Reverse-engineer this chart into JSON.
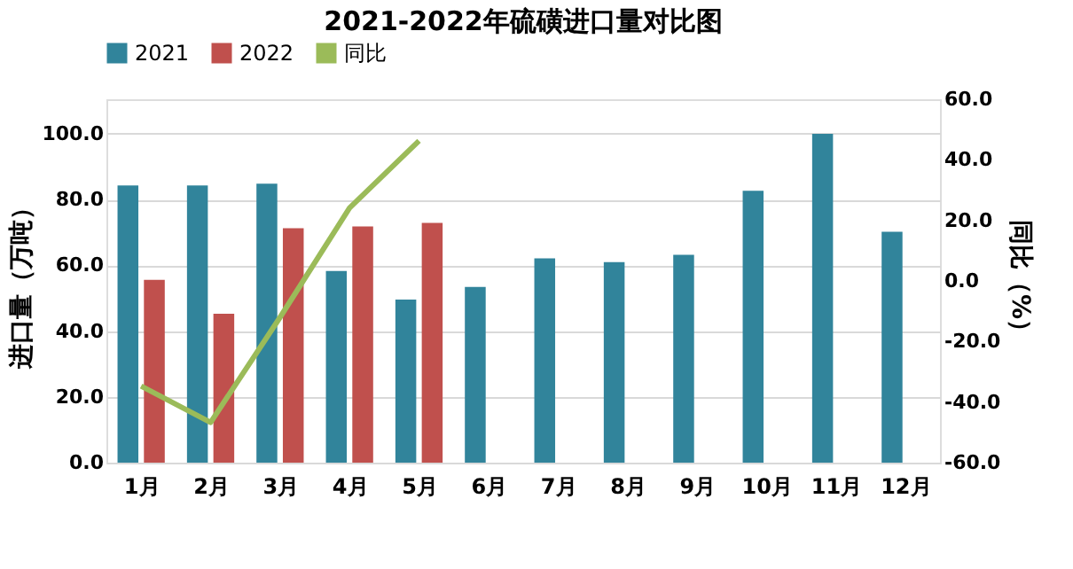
{
  "chart_data": {
    "type": "bar",
    "title": "2021-2022年硫磺进口量对比图",
    "categories": [
      "1月",
      "2月",
      "3月",
      "4月",
      "5月",
      "6月",
      "7月",
      "8月",
      "9月",
      "10月",
      "11月",
      "12月"
    ],
    "series": [
      {
        "name": "2021",
        "color": "#31849b",
        "values": [
          84.3,
          84.3,
          84.8,
          58.3,
          49.6,
          53.4,
          62.1,
          61.0,
          63.2,
          82.7,
          100.0,
          70.2
        ]
      },
      {
        "name": "2022",
        "color": "#c0504d",
        "values": [
          55.6,
          45.3,
          71.3,
          71.8,
          72.9,
          null,
          null,
          null,
          null,
          null,
          null,
          null
        ]
      },
      {
        "name": "同比",
        "type": "line",
        "axis": "y2",
        "color": "#9bbb59",
        "values": [
          -34.7,
          -46.7,
          -12.0,
          24.1,
          46.3,
          null,
          null,
          null,
          null,
          null,
          null,
          null
        ]
      }
    ],
    "ylabel": "进口量（万吨）",
    "y2label": "同比（%）",
    "ylim": [
      0,
      110.5
    ],
    "yticks": [
      {
        "value": 0,
        "label": "0.0"
      },
      {
        "value": 20,
        "label": "20.0"
      },
      {
        "value": 40,
        "label": "40.0"
      },
      {
        "value": 60,
        "label": "60.0"
      },
      {
        "value": 80,
        "label": "80.0"
      },
      {
        "value": 100,
        "label": "100.0"
      }
    ],
    "y2lim": [
      -60,
      60
    ],
    "y2ticks": [
      {
        "value": -60,
        "label": "-60.0"
      },
      {
        "value": -40,
        "label": "-40.0"
      },
      {
        "value": -20,
        "label": "-20.0"
      },
      {
        "value": 0,
        "label": "0.0"
      },
      {
        "value": 20,
        "label": "20.0"
      },
      {
        "value": 40,
        "label": "40.0"
      },
      {
        "value": 60,
        "label": "60.0"
      }
    ],
    "grid": "y",
    "legend": "top",
    "marker": "none",
    "line_style": "solid"
  }
}
